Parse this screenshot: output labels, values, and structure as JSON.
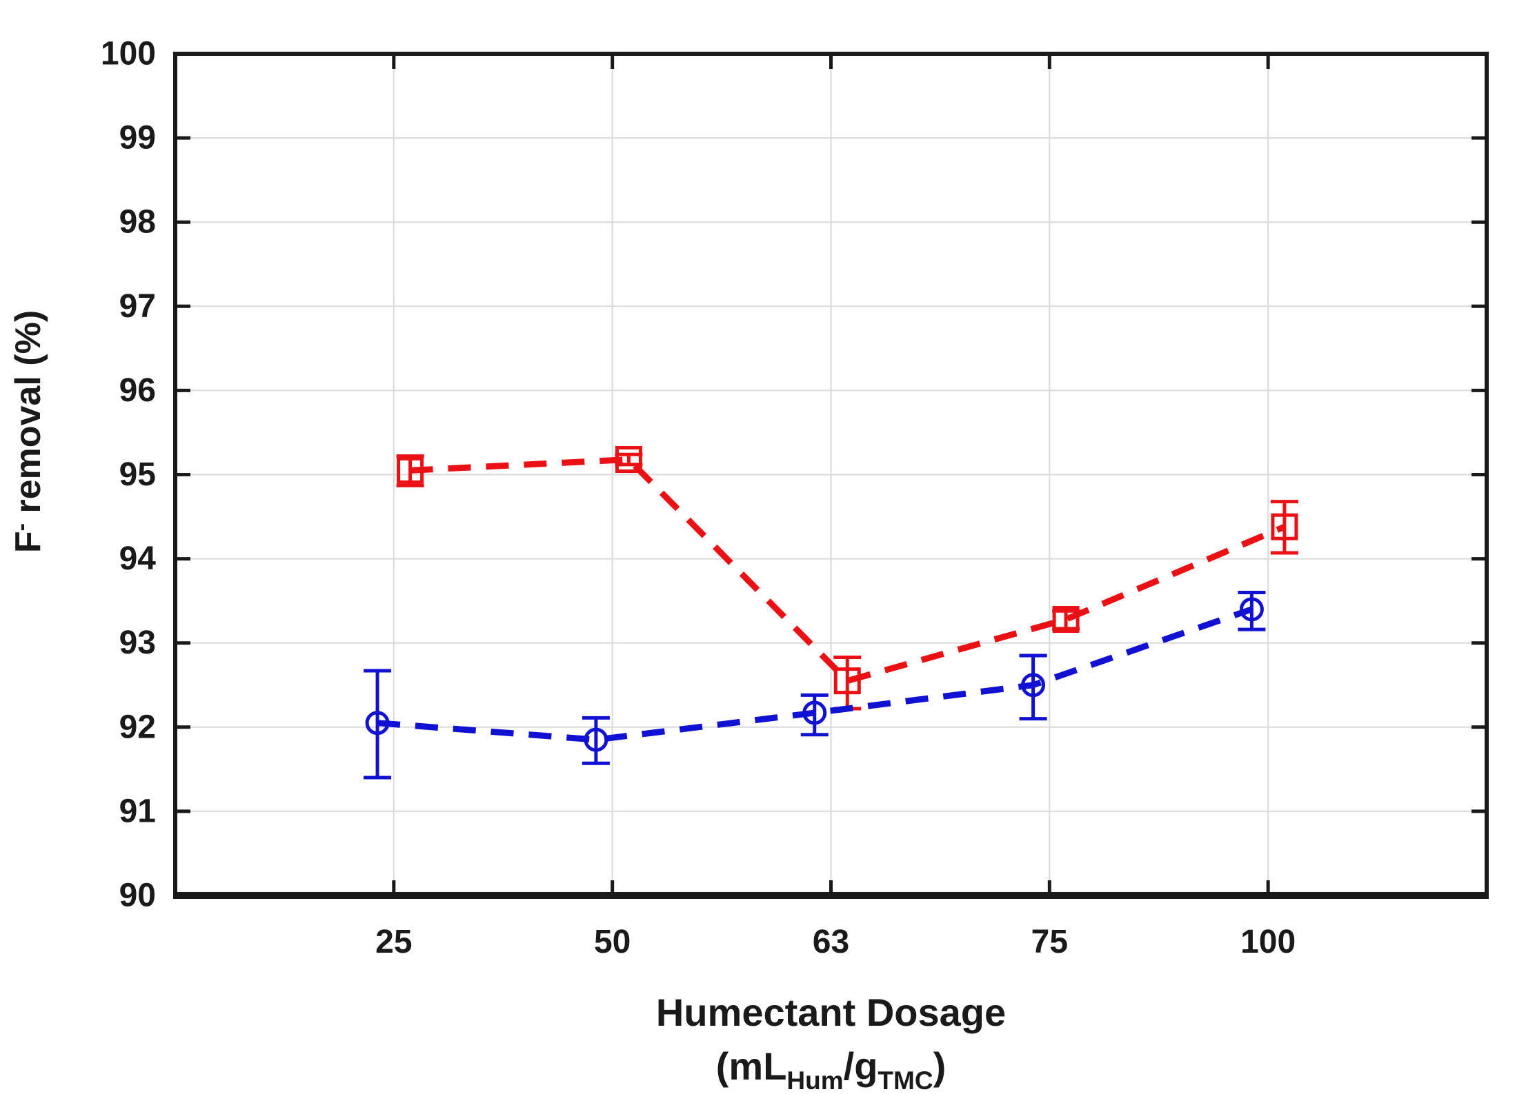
{
  "chart_data": {
    "type": "line",
    "title": "",
    "categories": [
      "25",
      "50",
      "63",
      "75",
      "100"
    ],
    "xlabel_line1": "Humectant Dosage",
    "xlabel_line2_parts": [
      {
        "t": "(mL"
      },
      {
        "t": "Hum",
        "style": "sub"
      },
      {
        "t": "/g"
      },
      {
        "t": "TMC",
        "style": "sub"
      },
      {
        "t": ")"
      }
    ],
    "xlabel_plain": "Humectant Dosage (mLHum/gTMC)",
    "ylabel_parts": [
      {
        "t": "F"
      },
      {
        "t": "-",
        "style": "sup"
      },
      {
        "t": " removal (%)"
      }
    ],
    "ylabel_plain": "F⁻ removal (%)",
    "ylim": [
      90,
      100
    ],
    "ytick_step": 1,
    "yticks": [
      "90",
      "91",
      "92",
      "93",
      "94",
      "95",
      "96",
      "97",
      "98",
      "99",
      "100"
    ],
    "grid": true,
    "legend": "none",
    "background_color": "#ffffff",
    "axis_color": "#1a1a1a",
    "grid_color": "#dadada",
    "text_color": "#1a1a1a",
    "series": [
      {
        "name": "red-squares",
        "marker": "square",
        "line_style": "dashed",
        "color": "#ea1014",
        "x_offset": 0.075,
        "values": [
          95.05,
          95.18,
          92.55,
          93.28,
          94.38
        ],
        "err_lo": [
          94.87,
          95.12,
          92.22,
          93.17,
          94.07
        ],
        "err_hi": [
          95.22,
          95.24,
          92.83,
          93.38,
          94.68
        ]
      },
      {
        "name": "blue-circles",
        "marker": "circle",
        "line_style": "dashed",
        "color": "#1111d4",
        "x_offset": -0.075,
        "values": [
          92.05,
          91.85,
          92.17,
          92.5,
          93.4
        ],
        "err_lo": [
          91.4,
          91.57,
          91.91,
          92.1,
          93.16
        ],
        "err_hi": [
          92.67,
          92.11,
          92.38,
          92.85,
          93.6
        ]
      }
    ]
  }
}
